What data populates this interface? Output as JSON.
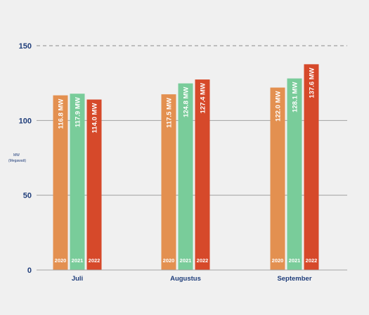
{
  "chart_data": {
    "type": "bar",
    "categories": [
      "Juli",
      "Augustus",
      "September"
    ],
    "series": [
      {
        "name": "2020",
        "values": [
          116.8,
          117.5,
          122.0
        ],
        "labels": [
          "116.8 MW",
          "117.5 MW",
          "122.0 MW"
        ]
      },
      {
        "name": "2021",
        "values": [
          117.9,
          124.8,
          128.1
        ],
        "labels": [
          "117.9 MW",
          "124.8 MW",
          "128.1 MW"
        ]
      },
      {
        "name": "2022",
        "values": [
          114.0,
          127.4,
          137.6
        ],
        "labels": [
          "114.0 MW",
          "127.4 MW",
          "137.6 MW"
        ]
      }
    ],
    "ylabel": "MW",
    "ylabel_sub": "(Megawatt)",
    "ylim": [
      0,
      150
    ],
    "yticks": [
      "0",
      "50",
      "100",
      "150"
    ],
    "grid": true,
    "reference_line": {
      "value": 150,
      "style": "dashed"
    },
    "colors": {
      "series": [
        "#e39050",
        "#79cc9a",
        "#d6492a"
      ],
      "axis_text": "#1f3d7a",
      "grid": "#a3a3a3",
      "background": "#f0f0f0"
    }
  }
}
